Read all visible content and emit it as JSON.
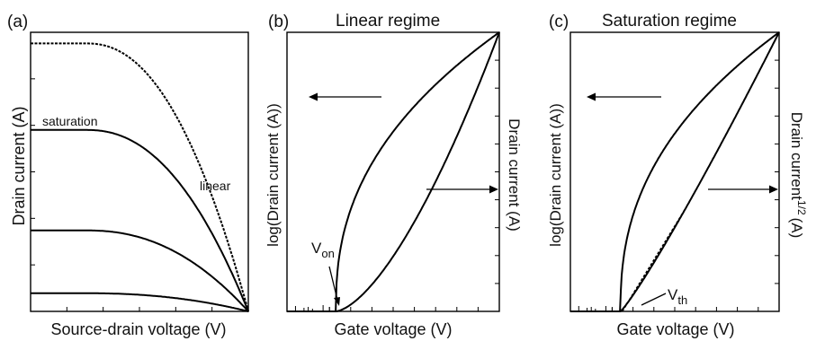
{
  "panels": [
    {
      "label": "(a)",
      "title": "",
      "xlabel": "Source-drain voltage (V)",
      "ylabel_left": "Drain current (A)",
      "annotations": [
        "saturation",
        "linear"
      ]
    },
    {
      "label": "(b)",
      "title": "Linear regime",
      "xlabel": "Gate voltage (V)",
      "ylabel_left": "log(Drain current (A))",
      "ylabel_right": "Drain current (A)",
      "marker": {
        "main": "V",
        "sub": "on"
      }
    },
    {
      "label": "(c)",
      "title": "Saturation regime",
      "xlabel": "Gate voltage (V)",
      "ylabel_left": "log(Drain current (A))",
      "ylabel_right_main": "Drain current",
      "ylabel_right_sup": "1/2",
      "ylabel_right_unit": "(A)",
      "marker": {
        "main": "V",
        "sub": "th"
      }
    }
  ],
  "chart_data": [
    {
      "type": "line",
      "panel": "(a)",
      "title": "",
      "xlabel": "Source-drain voltage (V)",
      "ylabel": "Drain current (A)",
      "xlim": [
        0,
        1
      ],
      "ylim": [
        0,
        1
      ],
      "axis_numbers_shown": false,
      "grid": false,
      "curve_shape": "saturating output curves that all meet at the right end of the x axis",
      "series": [
        {
          "saturation_level": 0.96
        },
        {
          "saturation_level": 0.65
        },
        {
          "saturation_level": 0.29
        },
        {
          "saturation_level": 0.065
        }
      ]
    },
    {
      "type": "line",
      "panel": "(b)",
      "title": "Linear regime",
      "xlabel": "Gate voltage (V)",
      "ylabel": "log(Drain current (A))",
      "y2label": "Drain current (A)",
      "xlim": [
        0,
        1
      ],
      "ylim": [
        0,
        1
      ],
      "axis_numbers_shown": false,
      "grid": false,
      "turn_on_x": 0.23,
      "series": [
        {
          "axis": "left",
          "shape": "concave",
          "arrow": "left"
        },
        {
          "axis": "right",
          "shape": "convex",
          "arrow": "right"
        }
      ]
    },
    {
      "type": "line",
      "panel": "(c)",
      "title": "Saturation regime",
      "xlabel": "Gate voltage (V)",
      "ylabel": "log(Drain current (A))",
      "y2label": "Drain current^(1/2) (A)",
      "xlim": [
        0,
        1
      ],
      "ylim": [
        0,
        1
      ],
      "axis_numbers_shown": false,
      "grid": false,
      "turn_on_x": 0.24,
      "series": [
        {
          "axis": "left",
          "shape": "concave",
          "arrow": "left"
        },
        {
          "axis": "right",
          "shape": "near-linear",
          "arrow": "right",
          "extrapolated_fit": true
        }
      ]
    }
  ]
}
